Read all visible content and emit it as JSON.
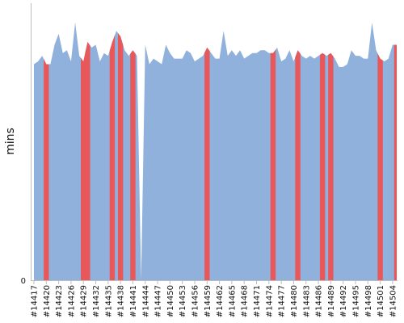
{
  "chart_data": {
    "type": "area",
    "title": "",
    "xlabel": "",
    "ylabel": "mins",
    "ylim": [
      0,
      100
    ],
    "y_ticks": [
      0
    ],
    "grid": false,
    "legend": "none",
    "colors": {
      "area": "#8fb1dc",
      "highlight": "#e8575a",
      "axis": "#bdbdbd"
    },
    "x": [
      "#14417",
      "#14418",
      "#14419",
      "#14420",
      "#14421",
      "#14422",
      "#14423",
      "#14424",
      "#14425",
      "#14426",
      "#14427",
      "#14428",
      "#14429",
      "#14430",
      "#14431",
      "#14432",
      "#14433",
      "#14434",
      "#14435",
      "#14436",
      "#14437",
      "#14438",
      "#14439",
      "#14440",
      "#14441",
      "#14442",
      "#14443",
      "#14444",
      "#14445",
      "#14446",
      "#14447",
      "#14448",
      "#14449",
      "#14450",
      "#14451",
      "#14452",
      "#14453",
      "#14454",
      "#14455",
      "#14456",
      "#14457",
      "#14458",
      "#14459",
      "#14460",
      "#14461",
      "#14462",
      "#14463",
      "#14464",
      "#14465",
      "#14466",
      "#14467",
      "#14468",
      "#14469",
      "#14470",
      "#14471",
      "#14472",
      "#14473",
      "#14474",
      "#14475",
      "#14476",
      "#14477",
      "#14478",
      "#14479",
      "#14480",
      "#14481",
      "#14482",
      "#14483",
      "#14484",
      "#14485",
      "#14486",
      "#14487",
      "#14488",
      "#14489",
      "#14490",
      "#14491",
      "#14492",
      "#14493",
      "#14494",
      "#14495",
      "#14496",
      "#14497",
      "#14498",
      "#14499",
      "#14500",
      "#14501",
      "#14502",
      "#14503",
      "#14504",
      "#14505"
    ],
    "x_tick_labels": [
      "#14417",
      "#14420",
      "#14423",
      "#14426",
      "#14429",
      "#14432",
      "#14435",
      "#14438",
      "#14441",
      "#14444",
      "#14447",
      "#14450",
      "#14453",
      "#14456",
      "#14459",
      "#14462",
      "#14465",
      "#14468",
      "#14471",
      "#14474",
      "#14477",
      "#14480",
      "#14483",
      "#14486",
      "#14489",
      "#14492",
      "#14495",
      "#14498",
      "#14501",
      "#14504"
    ],
    "series": [
      {
        "values": [
          78,
          79,
          81,
          78,
          78,
          85,
          89,
          82,
          83,
          79,
          93,
          81,
          79,
          86,
          84,
          85,
          79,
          82,
          81,
          86,
          90,
          88,
          83,
          81,
          83,
          81,
          0,
          85,
          78,
          80,
          79,
          78,
          85,
          82,
          80,
          80,
          80,
          83,
          82,
          79,
          80,
          81,
          84,
          82,
          80,
          80,
          90,
          81,
          83,
          81,
          83,
          80,
          81,
          82,
          82,
          83,
          83,
          82,
          82,
          84,
          79,
          80,
          83,
          79,
          83,
          81,
          80,
          81,
          80,
          81,
          82,
          81,
          82,
          80,
          77,
          77,
          78,
          83,
          81,
          81,
          80,
          80,
          93,
          83,
          80,
          79,
          80,
          85,
          85
        ]
      }
    ],
    "highlighted": [
      "#14420",
      "#14429",
      "#14430",
      "#14436",
      "#14438",
      "#14441",
      "#14459",
      "#14475",
      "#14481",
      "#14487",
      "#14489",
      "#14501",
      "#14505"
    ]
  }
}
